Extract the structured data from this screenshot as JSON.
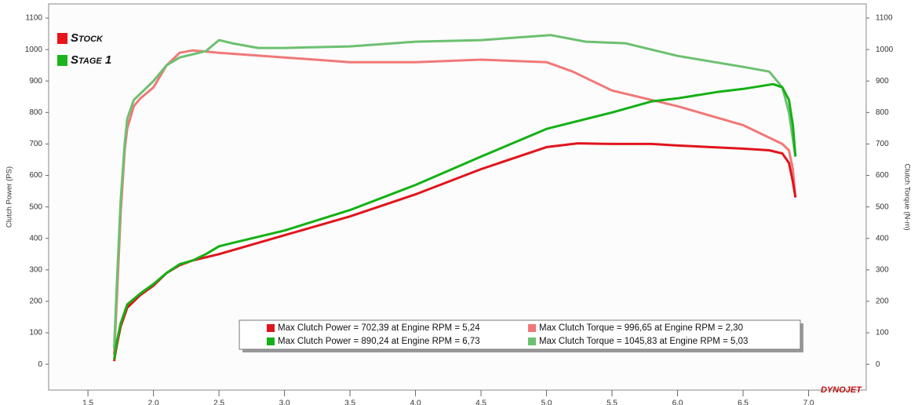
{
  "chart_data": {
    "type": "line",
    "y_label": "Clutch Power (PS)",
    "y2_label": "Clutch Torque (N-m)",
    "xlim": [
      1.2,
      7.44
    ],
    "ylim": [
      -82,
      1145
    ],
    "y2lim": [
      -82,
      1145
    ],
    "xticks": [
      1.5,
      {
        "value": 2,
        "label": "2.0"
      },
      2.5,
      {
        "value": 3,
        "label": "3.0"
      },
      3.5,
      {
        "value": 4,
        "label": "4.0"
      },
      4.5,
      {
        "value": 5,
        "label": "5.0"
      },
      5.5,
      {
        "value": 6,
        "label": "6.0"
      },
      6.5,
      {
        "value": 7,
        "label": "7.0"
      }
    ],
    "yticks": [
      0,
      100,
      200,
      300,
      400,
      500,
      600,
      700,
      800,
      900,
      1000,
      1100
    ],
    "y2ticks": [
      0,
      100,
      200,
      300,
      400,
      500,
      600,
      700,
      800,
      900,
      1000,
      1100
    ],
    "grid": false,
    "legend_groups": [
      {
        "name": "Stock",
        "color": "#e8141c"
      },
      {
        "name": "Stage 1",
        "color": "#1cb41c"
      }
    ],
    "watermark": "DYNOJET",
    "series": [
      {
        "name": "Max Clutch Power = 702,39 at Engine RPM = 5,24",
        "color": "#e0141c",
        "axis": "y",
        "x": [
          1.7,
          1.72,
          1.75,
          1.8,
          1.9,
          2.0,
          2.1,
          2.2,
          2.3,
          2.5,
          3.0,
          3.5,
          4.0,
          4.5,
          5.0,
          5.24,
          5.5,
          5.8,
          6.0,
          6.5,
          6.7,
          6.8,
          6.85,
          6.88,
          6.9
        ],
        "values": [
          10,
          60,
          120,
          180,
          220,
          250,
          290,
          315,
          330,
          350,
          410,
          470,
          540,
          620,
          690,
          702,
          700,
          700,
          695,
          685,
          680,
          670,
          640,
          580,
          530
        ]
      },
      {
        "name": "Max Clutch Power = 890,24 at Engine RPM = 6,73",
        "color": "#14b014",
        "axis": "y",
        "x": [
          1.7,
          1.72,
          1.75,
          1.8,
          1.9,
          2.0,
          2.1,
          2.2,
          2.3,
          2.4,
          2.5,
          2.6,
          3.0,
          3.5,
          4.0,
          4.5,
          5.0,
          5.5,
          5.8,
          6.0,
          6.3,
          6.5,
          6.73,
          6.8,
          6.85,
          6.88,
          6.9
        ],
        "values": [
          15,
          70,
          130,
          190,
          225,
          255,
          290,
          318,
          330,
          350,
          375,
          385,
          425,
          490,
          570,
          660,
          748,
          800,
          835,
          845,
          865,
          875,
          890,
          880,
          840,
          760,
          660
        ]
      },
      {
        "name": "Max Clutch Torque = 996,65 at Engine RPM = 2,30",
        "color": "#f07878",
        "axis": "y2",
        "x": [
          1.7,
          1.72,
          1.75,
          1.78,
          1.8,
          1.85,
          1.9,
          2.0,
          2.1,
          2.2,
          2.3,
          2.5,
          3.0,
          3.5,
          4.0,
          4.5,
          5.0,
          5.2,
          5.5,
          6.0,
          6.5,
          6.8,
          6.85,
          6.88,
          6.9
        ],
        "values": [
          30,
          200,
          480,
          680,
          750,
          820,
          845,
          880,
          950,
          990,
          997,
          990,
          975,
          960,
          960,
          968,
          960,
          930,
          870,
          820,
          760,
          700,
          680,
          620,
          530
        ]
      },
      {
        "name": "Max Clutch Torque = 1045,83 at Engine RPM = 5,03",
        "color": "#6cc070",
        "axis": "y2",
        "x": [
          1.7,
          1.72,
          1.75,
          1.78,
          1.8,
          1.85,
          1.9,
          2.0,
          2.1,
          2.2,
          2.4,
          2.5,
          2.6,
          2.8,
          3.0,
          3.5,
          4.0,
          4.5,
          5.03,
          5.3,
          5.6,
          6.0,
          6.5,
          6.7,
          6.8,
          6.85,
          6.9
        ],
        "values": [
          50,
          250,
          520,
          700,
          780,
          840,
          860,
          900,
          950,
          975,
          995,
          1030,
          1020,
          1005,
          1005,
          1010,
          1025,
          1030,
          1046,
          1025,
          1020,
          980,
          945,
          930,
          880,
          800,
          660
        ]
      }
    ]
  }
}
